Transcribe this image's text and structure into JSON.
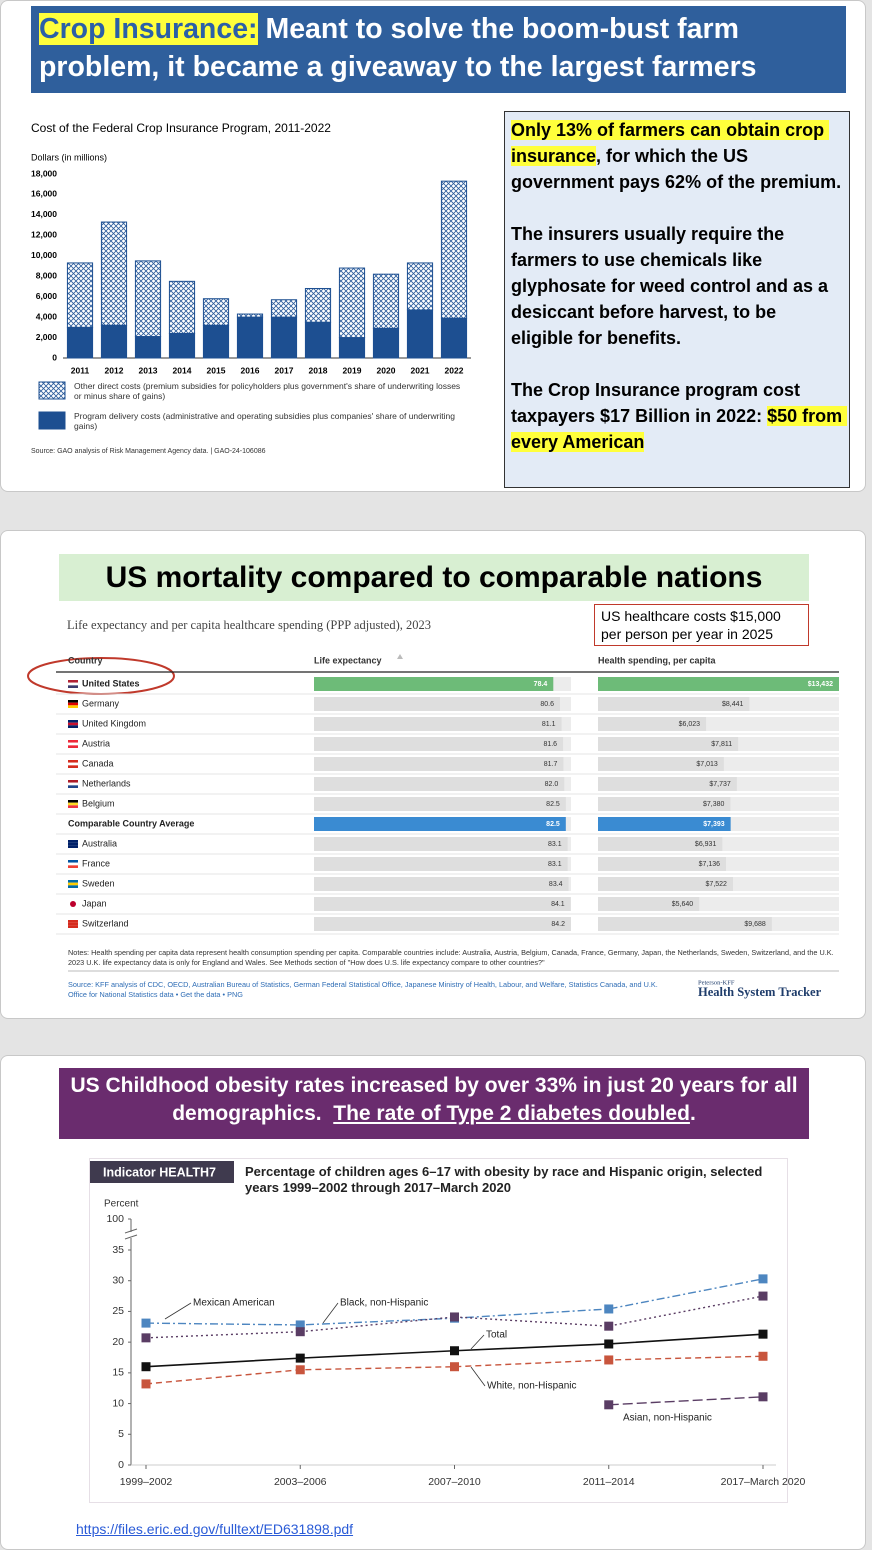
{
  "slide1": {
    "heading": [
      {
        "text": "Crop Insurance:",
        "highlight": true
      },
      {
        "text": " Meant to solve the boom-bust farm problem, it became a giveaway to the largest farmers"
      }
    ],
    "box": [
      [
        {
          "text": "Only 13% of farmers can obtain crop insurance",
          "highlight": true
        },
        {
          "text": ", for which the US government pays 62% of the premium."
        }
      ],
      [
        {
          "text": "The insurers usually require the farmers to use chemicals like glyphosate for weed control and as a desiccant before harvest, to be eligible for benefits."
        }
      ],
      [
        {
          "text": "The Crop Insurance program cost taxpayers $17 Billion in 2022: "
        },
        {
          "text": "$50 from every American",
          "highlight": true
        }
      ]
    ]
  },
  "slide2": {
    "heading": "US mortality compared to comparable nations",
    "callout": "US healthcare costs $15,000 per person per year in 2025"
  },
  "slide3": {
    "heading": [
      {
        "text": "US Childhood obesity rates increased by over 33% in just 20 years for all demographics.  "
      },
      {
        "text": "The rate of Type 2 diabetes doubled",
        "underline": true
      },
      {
        "text": "."
      }
    ],
    "link": "https://files.eric.ed.gov/fulltext/ED631898.pdf"
  },
  "chart_data": [
    {
      "type": "bar",
      "stacked": true,
      "title": "Cost of the Federal Crop Insurance Program, 2011-2022",
      "ylabel": "Dollars (in millions)",
      "categories": [
        "2011",
        "2012",
        "2013",
        "2014",
        "2015",
        "2016",
        "2017",
        "2018",
        "2019",
        "2020",
        "2021",
        "2022"
      ],
      "series": [
        {
          "name": "Program delivery costs (administrative and operating subsidies plus companies' share of underwriting gains)",
          "color": "#1d4f91",
          "values": [
            3000,
            3200,
            2100,
            2400,
            3200,
            4000,
            4000,
            3500,
            2000,
            2900,
            4700,
            3900
          ]
        },
        {
          "name": "Other direct costs (premium subsidies for policyholders plus government's share of underwriting losses or minus share of gains)",
          "color": "#1d4f91",
          "pattern": "crosshatch",
          "values": [
            6300,
            10100,
            7400,
            5100,
            2600,
            300,
            1700,
            3300,
            6800,
            5300,
            4600,
            13400
          ]
        }
      ],
      "ylim": [
        0,
        18000
      ],
      "yticks": [
        0,
        {
          "value": 2000,
          "label": "2,000"
        },
        {
          "value": 4000,
          "label": "4,000"
        },
        {
          "value": 6000,
          "label": "6,000"
        },
        {
          "value": 8000,
          "label": "8,000"
        },
        {
          "value": 10000,
          "label": "10,000"
        },
        {
          "value": 12000,
          "label": "12,000"
        },
        {
          "value": 14000,
          "label": "14,000"
        },
        {
          "value": 16000,
          "label": "16,000"
        },
        {
          "value": 18000,
          "label": "18,000"
        }
      ],
      "source": "Source: GAO analysis of Risk Management Agency data.  |  GAO-24-106086"
    },
    {
      "type": "bar",
      "orientation": "horizontal",
      "subtitle": "Life expectancy and per capita healthcare spending (PPP adjusted), 2023",
      "category_label": "Country",
      "categories": [
        "United States",
        "Germany",
        "United Kingdom",
        "Austria",
        "Canada",
        "Netherlands",
        "Belgium",
        "Comparable Country Average",
        "Australia",
        "France",
        "Sweden",
        "Japan",
        "Switzerland"
      ],
      "series": [
        {
          "name": "Life expectancy",
          "color": "#dedede",
          "values": [
            78.4,
            80.6,
            81.1,
            81.6,
            81.7,
            82.0,
            82.5,
            82.5,
            83.1,
            83.1,
            83.4,
            84.1,
            84.2
          ],
          "value_labels": [
            "78.4",
            "80.6",
            "81.1",
            "81.6",
            "81.7",
            "82.0",
            "82.5",
            "82.5",
            "83.1",
            "83.1",
            "83.4",
            "84.1",
            "84.2"
          ]
        },
        {
          "name": "Health spending, per capita",
          "color": "#dedede",
          "values": [
            13432,
            8441,
            6023,
            7811,
            7013,
            7737,
            7380,
            7393,
            6931,
            7136,
            7522,
            5640,
            9688
          ],
          "value_labels": [
            "$13,432",
            "$8,441",
            "$6,023",
            "$7,811",
            "$7,013",
            "$7,737",
            "$7,380",
            "$7,393",
            "$6,931",
            "$7,136",
            "$7,522",
            "$5,640",
            "$9,688"
          ]
        }
      ],
      "highlights": [
        {
          "index": 0,
          "color": "#6dbb78"
        },
        {
          "index": 7,
          "color": "#3a8bd2"
        }
      ],
      "notes": "Notes: Health spending per capita data represent health consumption spending per capita. Comparable countries include: Australia, Austria, Belgium, Canada, France, Germany, Japan, the Netherlands, Sweden, Switzerland, and the U.K. 2023 U.K. life expectancy data is only for England and Wales. See Methods section of \"How does U.S. life expectancy compare to other countries?\"",
      "source": "Source: KFF analysis of CDC, OECD, Australian Bureau of Statistics, German Federal Statistical Office, Japanese Ministry of Health, Labour, and Welfare, Statistics Canada, and U.K. Office for National Statistics data • Get the data • PNG",
      "brand": "Peterson-KFF",
      "brand_title": "Health System Tracker"
    },
    {
      "type": "line",
      "indicator": "Indicator HEALTH7",
      "title": "Percentage of children ages 6–17 with obesity by race and Hispanic origin, selected years 1999–2002 through 2017–March 2020",
      "ylabel": "Percent",
      "categories": [
        "1999–2002",
        "2003–2006",
        "2007–2010",
        "2011–2014",
        "2017–March 2020"
      ],
      "ylim": [
        0,
        35
      ],
      "yticks": [
        0,
        5,
        10,
        15,
        20,
        25,
        30,
        35,
        100
      ],
      "axis_break": true,
      "series": [
        {
          "name": "Mexican American",
          "color": "#4d86c0",
          "dash": "8 3 2 3",
          "values": [
            23.1,
            22.8,
            23.9,
            25.4,
            30.3
          ]
        },
        {
          "name": "Black, non-Hispanic",
          "color": "#5a3d64",
          "dash": "2 3",
          "values": [
            20.7,
            21.7,
            24.1,
            22.6,
            27.5
          ]
        },
        {
          "name": "Total",
          "color": "#111111",
          "dash": "none",
          "values": [
            16.0,
            17.4,
            18.6,
            19.7,
            21.3
          ]
        },
        {
          "name": "White, non-Hispanic",
          "color": "#c8553d",
          "dash": "6 4",
          "values": [
            13.2,
            15.5,
            16.0,
            17.1,
            17.7
          ]
        },
        {
          "name": "Asian, non-Hispanic",
          "color": "#5a3d64",
          "dash": "10 4",
          "values": [
            null,
            null,
            null,
            9.8,
            11.1
          ]
        }
      ]
    }
  ]
}
